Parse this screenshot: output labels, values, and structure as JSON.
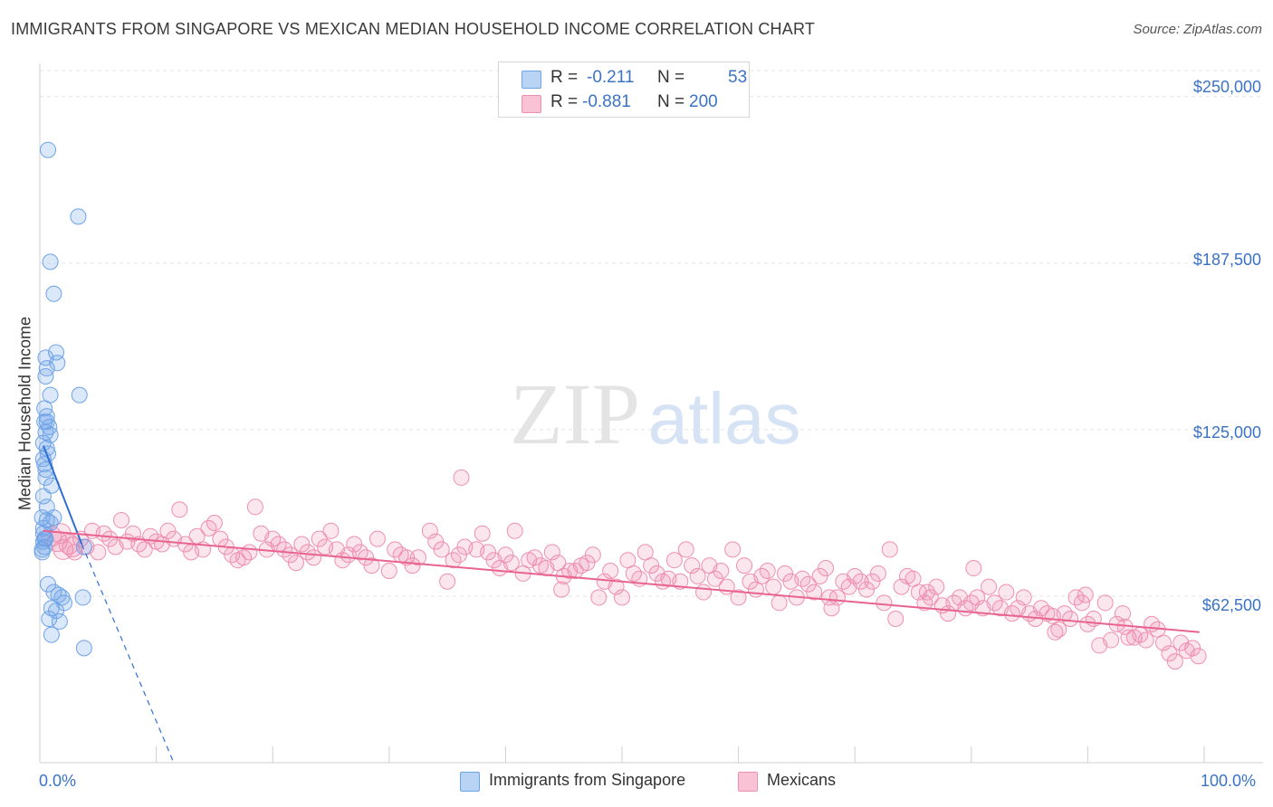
{
  "title": "IMMIGRANTS FROM SINGAPORE VS MEXICAN MEDIAN HOUSEHOLD INCOME CORRELATION CHART",
  "source": "Source: ZipAtlas.com",
  "watermark": {
    "zip": "ZIP",
    "atlas": "atlas"
  },
  "colors": {
    "blue": "#6ea3e8",
    "blue_line": "#2f6fd1",
    "pink": "#ef8fb0",
    "pink_line": "#e8648f",
    "axis_text": "#3b73c4"
  },
  "stats": {
    "r_label": "R =",
    "n_label": "N =",
    "rows": [
      {
        "r": "-0.211",
        "n": "53"
      },
      {
        "r": "-0.881",
        "n": "200"
      }
    ]
  },
  "legend": [
    "Immigrants from Singapore",
    "Mexicans"
  ],
  "chart_data": {
    "type": "scatter",
    "title": "IMMIGRANTS FROM SINGAPORE VS MEXICAN MEDIAN HOUSEHOLD INCOME CORRELATION CHART",
    "xlabel": "",
    "ylabel": "Median Household Income",
    "x_tick_labels": [
      "0.0%",
      "100.0%"
    ],
    "y_tick_labels": [
      "$250,000",
      "$187,500",
      "$125,000",
      "$62,500"
    ],
    "y_ticks": [
      250000,
      187500,
      125000,
      62500
    ],
    "xlim": [
      0,
      100
    ],
    "ylim": [
      0,
      262500
    ],
    "grid": true,
    "legend_position": "bottom-center",
    "series": [
      {
        "name": "Immigrants from Singapore",
        "r": -0.211,
        "n": 53,
        "trend": {
          "x0": 0.3,
          "y0": 119000,
          "x1": 3.6,
          "y1": 82000,
          "dashed_to_x": 11.5,
          "dashed_to_y": 0
        },
        "points": [
          [
            0.7,
            230000
          ],
          [
            3.3,
            205000
          ],
          [
            0.9,
            188000
          ],
          [
            1.2,
            176000
          ],
          [
            1.4,
            154000
          ],
          [
            0.5,
            152000
          ],
          [
            1.5,
            150000
          ],
          [
            0.6,
            148000
          ],
          [
            0.5,
            145000
          ],
          [
            3.4,
            138000
          ],
          [
            0.9,
            138000
          ],
          [
            0.4,
            133000
          ],
          [
            0.4,
            128000
          ],
          [
            0.6,
            128000
          ],
          [
            0.8,
            126000
          ],
          [
            0.9,
            123000
          ],
          [
            0.3,
            120000
          ],
          [
            0.6,
            118000
          ],
          [
            0.7,
            116000
          ],
          [
            0.3,
            114000
          ],
          [
            0.5,
            110000
          ],
          [
            0.5,
            107000
          ],
          [
            1.0,
            104000
          ],
          [
            1.2,
            92000
          ],
          [
            0.6,
            91000
          ],
          [
            0.9,
            90000
          ],
          [
            0.3,
            86000
          ],
          [
            0.5,
            84000
          ],
          [
            0.4,
            81000
          ],
          [
            3.8,
            81000
          ],
          [
            0.7,
            67000
          ],
          [
            1.2,
            64000
          ],
          [
            3.7,
            62000
          ],
          [
            1.6,
            63000
          ],
          [
            1.9,
            62000
          ],
          [
            2.1,
            60000
          ],
          [
            1.0,
            58000
          ],
          [
            1.4,
            57000
          ],
          [
            0.8,
            54000
          ],
          [
            1.7,
            53000
          ],
          [
            1.0,
            48000
          ],
          [
            3.8,
            43000
          ],
          [
            0.2,
            80000
          ],
          [
            0.3,
            83000
          ],
          [
            0.4,
            84000
          ],
          [
            0.3,
            88000
          ],
          [
            0.2,
            92000
          ],
          [
            0.6,
            96000
          ],
          [
            0.3,
            100000
          ],
          [
            0.4,
            112000
          ],
          [
            0.5,
            124000
          ],
          [
            0.6,
            130000
          ],
          [
            0.2,
            79000
          ]
        ]
      },
      {
        "name": "Mexicans",
        "r": -0.881,
        "n": 200,
        "trend": {
          "x0": 0.3,
          "y0": 87000,
          "x1": 99.6,
          "y1": 49000
        },
        "points": [
          [
            1.0,
            85000
          ],
          [
            1.5,
            83000
          ],
          [
            2.0,
            80000
          ],
          [
            2.5,
            82000
          ],
          [
            3.0,
            79000
          ],
          [
            3.5,
            84000
          ],
          [
            4.0,
            81000
          ],
          [
            5.0,
            79000
          ],
          [
            5.5,
            86000
          ],
          [
            6.0,
            84000
          ],
          [
            7.0,
            91000
          ],
          [
            7.5,
            83000
          ],
          [
            8.0,
            86000
          ],
          [
            8.5,
            82000
          ],
          [
            9.5,
            85000
          ],
          [
            10.0,
            83000
          ],
          [
            11.0,
            87000
          ],
          [
            11.5,
            84000
          ],
          [
            12.0,
            95000
          ],
          [
            12.5,
            82000
          ],
          [
            13.0,
            79000
          ],
          [
            13.5,
            85000
          ],
          [
            14.5,
            88000
          ],
          [
            15.0,
            90000
          ],
          [
            15.5,
            84000
          ],
          [
            16.0,
            81000
          ],
          [
            16.5,
            78000
          ],
          [
            17.0,
            76000
          ],
          [
            17.5,
            77000
          ],
          [
            18.5,
            96000
          ],
          [
            19.0,
            86000
          ],
          [
            19.5,
            80000
          ],
          [
            20.0,
            84000
          ],
          [
            20.5,
            82000
          ],
          [
            21.0,
            80000
          ],
          [
            21.5,
            78000
          ],
          [
            22.0,
            75000
          ],
          [
            22.5,
            82000
          ],
          [
            23.0,
            79000
          ],
          [
            23.5,
            77000
          ],
          [
            24.0,
            84000
          ],
          [
            24.5,
            81000
          ],
          [
            25.5,
            80000
          ],
          [
            25.0,
            87000
          ],
          [
            26.0,
            76000
          ],
          [
            26.5,
            78000
          ],
          [
            27.0,
            82000
          ],
          [
            27.5,
            79000
          ],
          [
            28.0,
            77000
          ],
          [
            28.5,
            74000
          ],
          [
            29.0,
            84000
          ],
          [
            30.0,
            72000
          ],
          [
            30.5,
            80000
          ],
          [
            31.0,
            78000
          ],
          [
            31.5,
            77000
          ],
          [
            32.0,
            74000
          ],
          [
            32.5,
            77000
          ],
          [
            33.5,
            87000
          ],
          [
            34.0,
            83000
          ],
          [
            34.5,
            80000
          ],
          [
            35.0,
            68000
          ],
          [
            35.5,
            76000
          ],
          [
            36.0,
            78000
          ],
          [
            36.5,
            81000
          ],
          [
            37.5,
            80000
          ],
          [
            38.0,
            86000
          ],
          [
            38.5,
            79000
          ],
          [
            39.0,
            76000
          ],
          [
            39.5,
            73000
          ],
          [
            40.0,
            78000
          ],
          [
            40.5,
            75000
          ],
          [
            41.5,
            71000
          ],
          [
            42.0,
            76000
          ],
          [
            42.5,
            77000
          ],
          [
            43.0,
            74000
          ],
          [
            43.5,
            73000
          ],
          [
            44.0,
            79000
          ],
          [
            44.5,
            75000
          ],
          [
            45.0,
            70000
          ],
          [
            45.5,
            72000
          ],
          [
            46.0,
            72000
          ],
          [
            46.5,
            74000
          ],
          [
            47.0,
            75000
          ],
          [
            47.5,
            78000
          ],
          [
            48.0,
            62000
          ],
          [
            48.5,
            68000
          ],
          [
            49.0,
            72000
          ],
          [
            49.5,
            66000
          ],
          [
            50.0,
            62000
          ],
          [
            50.5,
            76000
          ],
          [
            51.0,
            71000
          ],
          [
            51.5,
            69000
          ],
          [
            52.0,
            79000
          ],
          [
            52.5,
            74000
          ],
          [
            53.0,
            71000
          ],
          [
            53.5,
            68000
          ],
          [
            54.0,
            69000
          ],
          [
            54.5,
            76000
          ],
          [
            55.0,
            68000
          ],
          [
            55.5,
            80000
          ],
          [
            56.0,
            74000
          ],
          [
            56.5,
            70000
          ],
          [
            57.0,
            64000
          ],
          [
            57.5,
            74000
          ],
          [
            58.0,
            69000
          ],
          [
            58.5,
            72000
          ],
          [
            59.0,
            66000
          ],
          [
            59.5,
            80000
          ],
          [
            60.0,
            62000
          ],
          [
            60.5,
            74000
          ],
          [
            61.0,
            68000
          ],
          [
            61.5,
            65000
          ],
          [
            62.0,
            70000
          ],
          [
            62.5,
            72000
          ],
          [
            63.0,
            66000
          ],
          [
            63.5,
            60000
          ],
          [
            64.0,
            71000
          ],
          [
            64.5,
            68000
          ],
          [
            65.0,
            62000
          ],
          [
            65.5,
            69000
          ],
          [
            66.0,
            67000
          ],
          [
            66.5,
            64000
          ],
          [
            67.0,
            70000
          ],
          [
            67.5,
            73000
          ],
          [
            68.0,
            58000
          ],
          [
            68.5,
            62000
          ],
          [
            69.0,
            68000
          ],
          [
            69.5,
            66000
          ],
          [
            70.0,
            70000
          ],
          [
            70.5,
            68000
          ],
          [
            71.0,
            65000
          ],
          [
            71.5,
            68000
          ],
          [
            72.0,
            71000
          ],
          [
            72.5,
            60000
          ],
          [
            73.0,
            80000
          ],
          [
            73.5,
            54000
          ],
          [
            74.0,
            66000
          ],
          [
            74.5,
            70000
          ],
          [
            75.0,
            69000
          ],
          [
            75.5,
            64000
          ],
          [
            76.0,
            60000
          ],
          [
            76.5,
            62000
          ],
          [
            77.0,
            66000
          ],
          [
            77.5,
            59000
          ],
          [
            78.0,
            56000
          ],
          [
            78.5,
            60000
          ],
          [
            79.0,
            62000
          ],
          [
            79.5,
            58000
          ],
          [
            80.0,
            60000
          ],
          [
            80.5,
            62000
          ],
          [
            81.0,
            58000
          ],
          [
            81.5,
            66000
          ],
          [
            82.0,
            60000
          ],
          [
            82.5,
            58000
          ],
          [
            83.0,
            64000
          ],
          [
            83.5,
            56000
          ],
          [
            84.0,
            58000
          ],
          [
            84.5,
            62000
          ],
          [
            85.0,
            56000
          ],
          [
            85.5,
            54000
          ],
          [
            86.0,
            58000
          ],
          [
            86.5,
            56000
          ],
          [
            87.0,
            55000
          ],
          [
            87.5,
            50000
          ],
          [
            88.0,
            56000
          ],
          [
            88.5,
            54000
          ],
          [
            89.0,
            62000
          ],
          [
            89.5,
            60000
          ],
          [
            90.0,
            52000
          ],
          [
            90.5,
            54000
          ],
          [
            91.0,
            44000
          ],
          [
            91.5,
            60000
          ],
          [
            92.0,
            46000
          ],
          [
            92.5,
            52000
          ],
          [
            93.0,
            56000
          ],
          [
            93.5,
            47000
          ],
          [
            94.0,
            47000
          ],
          [
            94.5,
            48000
          ],
          [
            95.0,
            46000
          ],
          [
            95.5,
            52000
          ],
          [
            96.0,
            50000
          ],
          [
            96.5,
            45000
          ],
          [
            97.0,
            41000
          ],
          [
            97.5,
            38000
          ],
          [
            98.0,
            45000
          ],
          [
            98.5,
            42000
          ],
          [
            99.0,
            43000
          ],
          [
            99.5,
            40000
          ],
          [
            1.8,
            86000
          ],
          [
            2.8,
            81000
          ],
          [
            4.5,
            87000
          ],
          [
            6.5,
            81000
          ],
          [
            9.0,
            80000
          ],
          [
            10.5,
            82000
          ],
          [
            14.0,
            80000
          ],
          [
            18.0,
            79000
          ],
          [
            36.2,
            107000
          ],
          [
            40.8,
            87000
          ],
          [
            44.8,
            65000
          ],
          [
            67.8,
            62000
          ],
          [
            76.2,
            64000
          ],
          [
            80.2,
            73000
          ],
          [
            87.2,
            49000
          ],
          [
            89.8,
            63000
          ],
          [
            93.2,
            51000
          ]
        ]
      }
    ]
  }
}
